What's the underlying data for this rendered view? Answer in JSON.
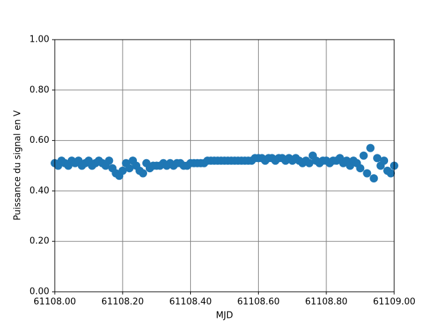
{
  "chart_data": {
    "type": "scatter",
    "xlabel": "MJD",
    "ylabel": "Puissance du signal en V",
    "color": "#1f77b4",
    "grid": true,
    "grid_color": "#808080",
    "xlim": [
      61108.0,
      61109.0
    ],
    "xticks": [
      {
        "value": 61108.0,
        "label": "61108.00"
      },
      {
        "value": 61108.2,
        "label": "61108.20"
      },
      {
        "value": 61108.4,
        "label": "61108.40"
      },
      {
        "value": 61108.6,
        "label": "61108.60"
      },
      {
        "value": 61108.8,
        "label": "61108.80"
      },
      {
        "value": 61109.0,
        "label": "61109.00"
      }
    ],
    "ylim": [
      0,
      1
    ],
    "yticks": [
      {
        "value": 0,
        "label": "0.00"
      },
      {
        "value": 0.2,
        "label": "0.20"
      },
      {
        "value": 0.4,
        "label": "0.40"
      },
      {
        "value": 0.6,
        "label": "0.60"
      },
      {
        "value": 0.8,
        "label": "0.80"
      },
      {
        "value": 1,
        "label": "1.00"
      }
    ],
    "x": [
      61108.0,
      61108.01,
      61108.02,
      61108.03,
      61108.04,
      61108.05,
      61108.06,
      61108.07,
      61108.08,
      61108.09,
      61108.1,
      61108.11,
      61108.12,
      61108.13,
      61108.14,
      61108.15,
      61108.16,
      61108.17,
      61108.18,
      61108.19,
      61108.2,
      61108.21,
      61108.22,
      61108.23,
      61108.24,
      61108.25,
      61108.26,
      61108.27,
      61108.28,
      61108.29,
      61108.3,
      61108.31,
      61108.32,
      61108.33,
      61108.34,
      61108.35,
      61108.36,
      61108.37,
      61108.38,
      61108.39,
      61108.4,
      61108.41,
      61108.42,
      61108.43,
      61108.44,
      61108.45,
      61108.46,
      61108.47,
      61108.48,
      61108.49,
      61108.5,
      61108.51,
      61108.52,
      61108.53,
      61108.54,
      61108.55,
      61108.56,
      61108.57,
      61108.58,
      61108.59,
      61108.6,
      61108.61,
      61108.62,
      61108.63,
      61108.64,
      61108.65,
      61108.66,
      61108.67,
      61108.68,
      61108.69,
      61108.7,
      61108.71,
      61108.72,
      61108.73,
      61108.74,
      61108.75,
      61108.76,
      61108.77,
      61108.78,
      61108.79,
      61108.8,
      61108.81,
      61108.82,
      61108.83,
      61108.84,
      61108.85,
      61108.86,
      61108.87,
      61108.88,
      61108.89,
      61108.9,
      61108.91,
      61108.92,
      61108.93,
      61108.94,
      61108.95,
      61108.96,
      61108.97,
      61108.98,
      61108.99,
      61109.0
    ],
    "values": [
      0.51,
      0.5,
      0.52,
      0.51,
      0.5,
      0.52,
      0.51,
      0.52,
      0.5,
      0.51,
      0.52,
      0.5,
      0.51,
      0.52,
      0.51,
      0.5,
      0.52,
      0.49,
      0.47,
      0.46,
      0.48,
      0.51,
      0.49,
      0.52,
      0.5,
      0.48,
      0.47,
      0.51,
      0.49,
      0.5,
      0.5,
      0.5,
      0.51,
      0.5,
      0.51,
      0.5,
      0.51,
      0.51,
      0.5,
      0.5,
      0.51,
      0.51,
      0.51,
      0.51,
      0.51,
      0.52,
      0.52,
      0.52,
      0.52,
      0.52,
      0.52,
      0.52,
      0.52,
      0.52,
      0.52,
      0.52,
      0.52,
      0.52,
      0.52,
      0.53,
      0.53,
      0.53,
      0.52,
      0.53,
      0.53,
      0.52,
      0.53,
      0.53,
      0.52,
      0.53,
      0.52,
      0.53,
      0.52,
      0.51,
      0.52,
      0.51,
      0.54,
      0.52,
      0.51,
      0.52,
      0.52,
      0.51,
      0.52,
      0.52,
      0.53,
      0.51,
      0.52,
      0.5,
      0.52,
      0.51,
      0.49,
      0.54,
      0.47,
      0.57,
      0.45,
      0.53,
      0.5,
      0.52,
      0.48,
      0.47,
      0.5
    ]
  }
}
